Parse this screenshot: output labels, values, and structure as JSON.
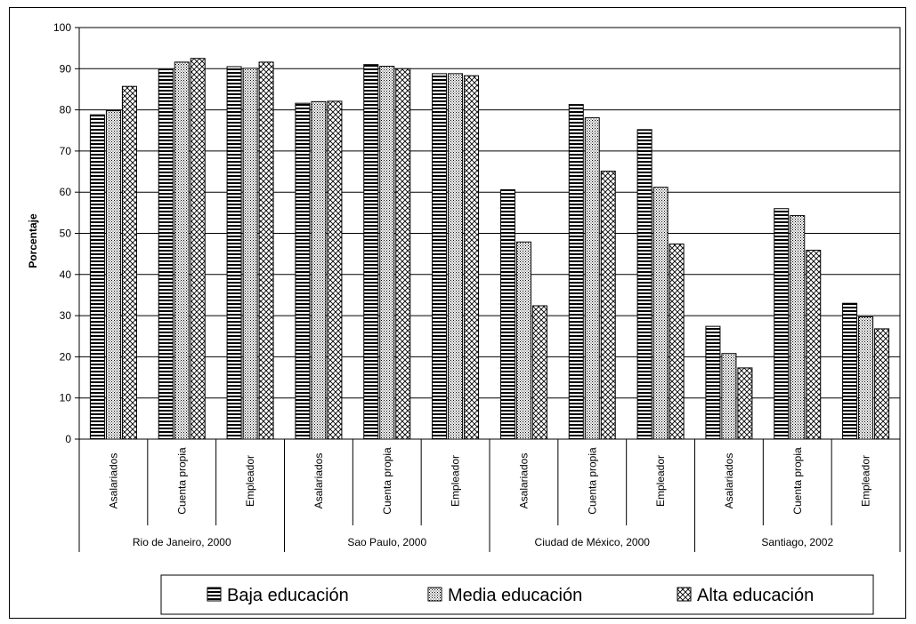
{
  "chart_data": {
    "type": "bar",
    "title": "",
    "xlabel": "",
    "ylabel": "Porcentaje",
    "ylim": [
      0,
      100
    ],
    "yticks": [
      0,
      10,
      20,
      30,
      40,
      50,
      60,
      70,
      80,
      90,
      100
    ],
    "grid": "horizontal",
    "legend": "bottom",
    "groups": [
      {
        "name": "Rio de Janeiro, 2000",
        "categories": [
          "Asalariados",
          "Cuenta propia",
          "Empleador"
        ]
      },
      {
        "name": "Sao Paulo, 2000",
        "categories": [
          "Asalariados",
          "Cuenta propia",
          "Empleador"
        ]
      },
      {
        "name": "Ciudad de México, 2000",
        "categories": [
          "Asalariados",
          "Cuenta propia",
          "Empleador"
        ]
      },
      {
        "name": "Santiago, 2002",
        "categories": [
          "Asalariados",
          "Cuenta propia",
          "Empleador"
        ]
      }
    ],
    "series": [
      {
        "name": "Baja educación",
        "pattern": "horizontal-stripes",
        "values": [
          78.8,
          89.8,
          90.5,
          81.6,
          91.0,
          88.8,
          60.6,
          81.3,
          75.2,
          27.4,
          56.0,
          33.0
        ]
      },
      {
        "name": "Media educación",
        "pattern": "dots",
        "values": [
          79.8,
          91.6,
          90.1,
          82.0,
          90.6,
          88.8,
          47.9,
          78.1,
          61.2,
          20.8,
          54.3,
          29.7
        ]
      },
      {
        "name": "Alta educación",
        "pattern": "crosshatch",
        "values": [
          85.7,
          92.5,
          91.6,
          82.1,
          90.0,
          88.3,
          32.4,
          65.1,
          47.4,
          17.3,
          45.9,
          26.8
        ]
      }
    ]
  }
}
